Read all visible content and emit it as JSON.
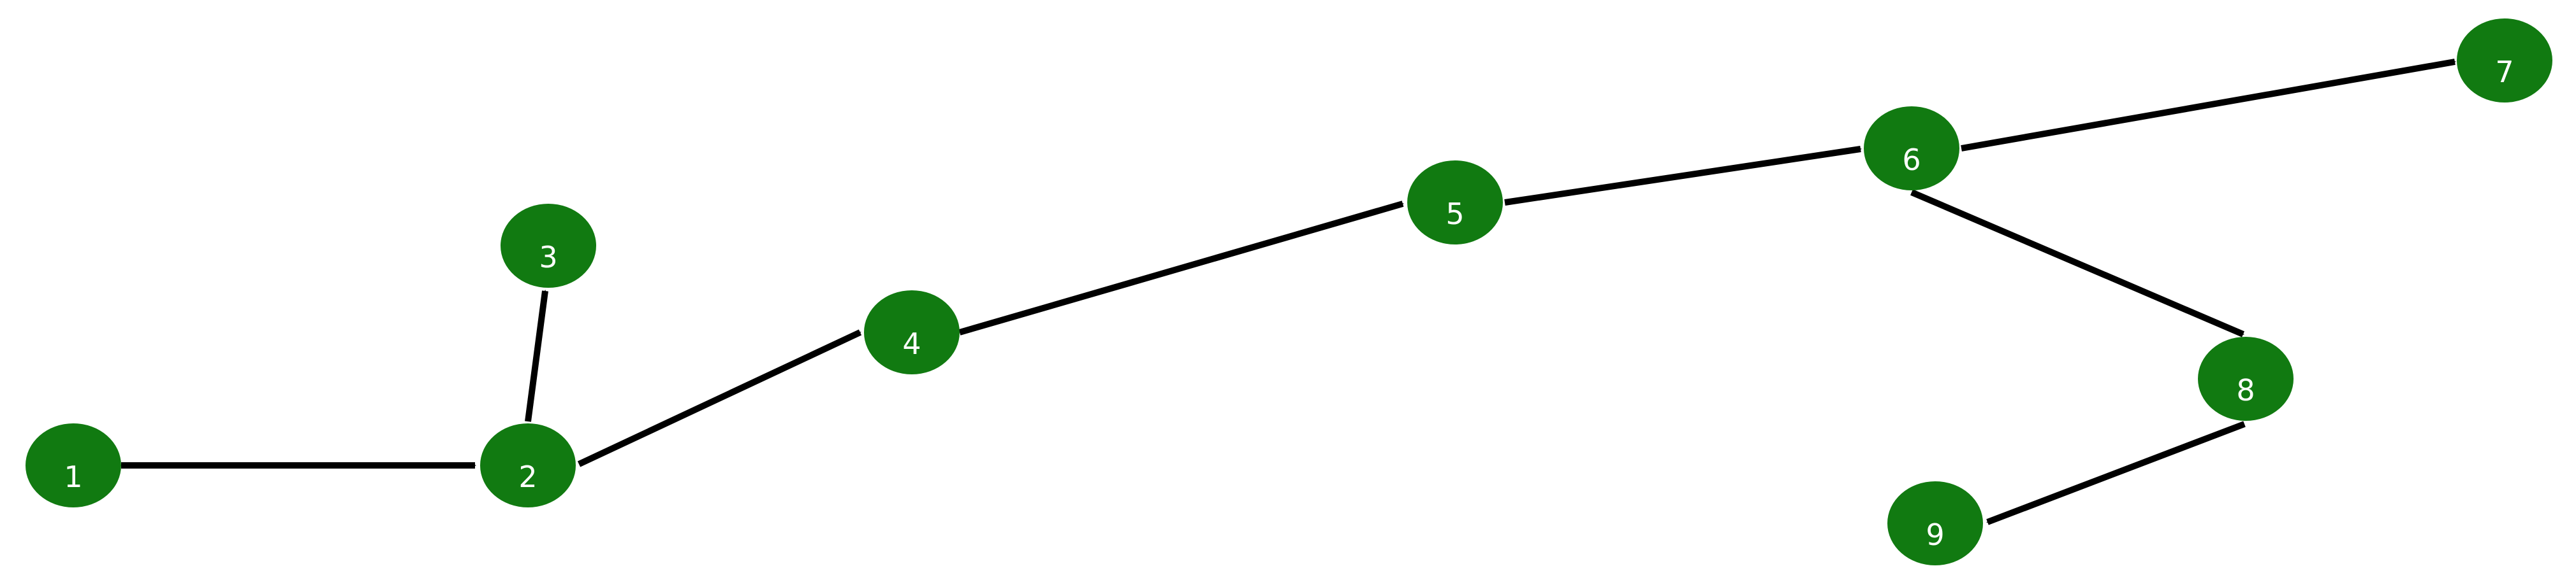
{
  "colors": {
    "node_fill": "#117a11",
    "node_label": "#ffffff",
    "edge": "#000000",
    "background": "#ffffff"
  },
  "nodes": [
    {
      "id": "n1",
      "label": "1"
    },
    {
      "id": "n2",
      "label": "2"
    },
    {
      "id": "n3",
      "label": "3"
    },
    {
      "id": "n4",
      "label": "4"
    },
    {
      "id": "n5",
      "label": "5"
    },
    {
      "id": "n6",
      "label": "6"
    },
    {
      "id": "n7",
      "label": "7"
    },
    {
      "id": "n8",
      "label": "8"
    },
    {
      "id": "n9",
      "label": "9"
    }
  ],
  "edges": [
    {
      "from": "1",
      "to": "2"
    },
    {
      "from": "2",
      "to": "3"
    },
    {
      "from": "2",
      "to": "4"
    },
    {
      "from": "4",
      "to": "5"
    },
    {
      "from": "5",
      "to": "6"
    },
    {
      "from": "6",
      "to": "7"
    },
    {
      "from": "6",
      "to": "8"
    },
    {
      "from": "8",
      "to": "9"
    }
  ]
}
